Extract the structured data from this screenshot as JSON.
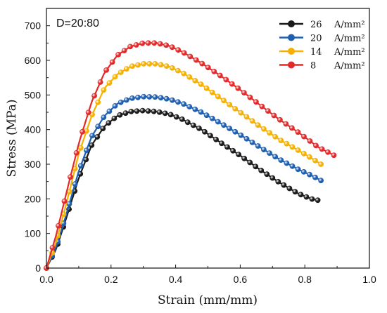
{
  "chart_data": {
    "type": "line",
    "annotation": "D=20:80",
    "xlabel": "Strain (mm/mm)",
    "ylabel": "Stress (MPa)",
    "xlim": [
      0.0,
      1.0
    ],
    "ylim": [
      0,
      750
    ],
    "xticks": [
      "0.0",
      "0.2",
      "0.4",
      "0.6",
      "0.8",
      "1.0"
    ],
    "yticks": [
      "0",
      "100",
      "200",
      "300",
      "400",
      "500",
      "600",
      "700"
    ],
    "grid": false,
    "legend_position": "top-right",
    "legend_unit": "A/mm²",
    "series": [
      {
        "name": "26",
        "color": "#1a1a1a",
        "x": [
          0.0,
          0.03,
          0.06,
          0.1,
          0.14,
          0.18,
          0.22,
          0.26,
          0.3,
          0.34,
          0.38,
          0.42,
          0.48,
          0.54,
          0.6,
          0.66,
          0.72,
          0.78,
          0.82,
          0.84
        ],
        "y": [
          0,
          55,
          140,
          260,
          355,
          410,
          440,
          452,
          455,
          452,
          445,
          430,
          400,
          362,
          325,
          285,
          248,
          215,
          200,
          196
        ]
      },
      {
        "name": "20",
        "color": "#1f5fb0",
        "x": [
          0.0,
          0.03,
          0.06,
          0.1,
          0.14,
          0.18,
          0.22,
          0.26,
          0.3,
          0.34,
          0.38,
          0.42,
          0.48,
          0.54,
          0.6,
          0.66,
          0.72,
          0.78,
          0.82,
          0.85
        ],
        "y": [
          0,
          60,
          150,
          280,
          380,
          440,
          475,
          490,
          495,
          494,
          488,
          476,
          450,
          418,
          385,
          350,
          315,
          285,
          268,
          253
        ]
      },
      {
        "name": "14",
        "color": "#f5b000",
        "x": [
          0.0,
          0.03,
          0.06,
          0.1,
          0.14,
          0.18,
          0.22,
          0.26,
          0.3,
          0.34,
          0.38,
          0.42,
          0.48,
          0.54,
          0.6,
          0.66,
          0.72,
          0.78,
          0.82,
          0.85
        ],
        "y": [
          0,
          75,
          180,
          330,
          440,
          520,
          560,
          582,
          590,
          590,
          582,
          565,
          530,
          490,
          450,
          410,
          372,
          340,
          318,
          300
        ]
      },
      {
        "name": "8",
        "color": "#e32a2a",
        "x": [
          0.0,
          0.03,
          0.06,
          0.1,
          0.14,
          0.18,
          0.22,
          0.26,
          0.3,
          0.34,
          0.38,
          0.42,
          0.48,
          0.54,
          0.6,
          0.66,
          0.72,
          0.78,
          0.84,
          0.89
        ],
        "y": [
          0,
          95,
          210,
          360,
          480,
          565,
          615,
          640,
          650,
          650,
          642,
          625,
          592,
          555,
          515,
          472,
          430,
          392,
          350,
          326
        ]
      }
    ]
  }
}
